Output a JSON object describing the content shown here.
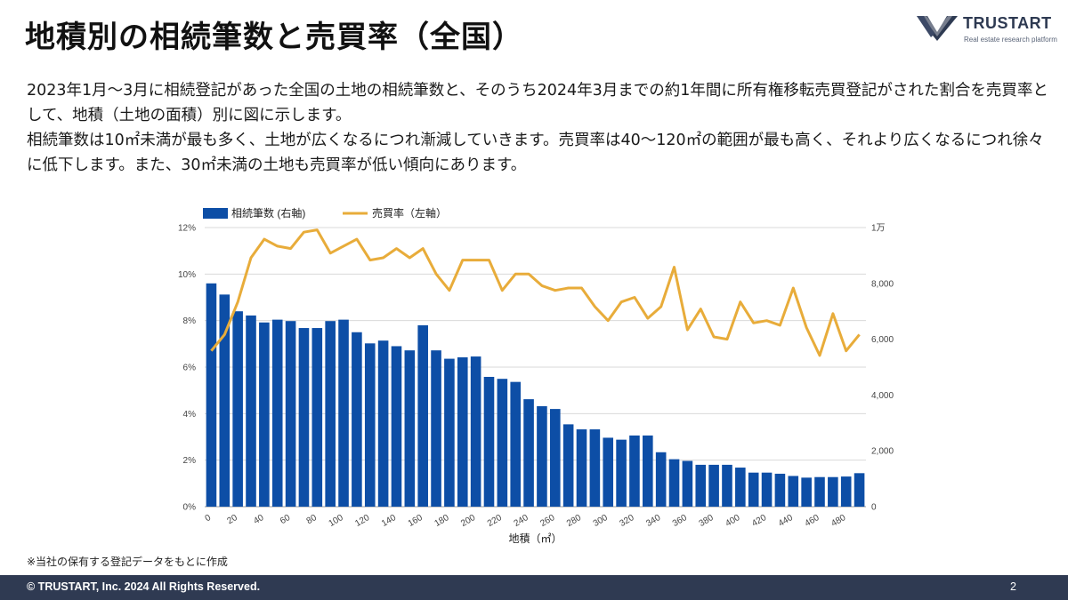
{
  "header": {
    "title": "地積別の相続筆数と売買率（全国）"
  },
  "logo": {
    "name": "TRUSTART",
    "tagline": "Real estate research platform"
  },
  "description": {
    "line1": "2023年1月～3月に相続登記があった全国の土地の相続筆数と、そのうち2024年3月までの約1年間に所有権移転売買登記がされた割合を売買率として、地積（土地の面積）別に図に示します。",
    "line2": "相続筆数は10㎡未満が最も多く、土地が広くなるにつれ漸減していきます。売買率は40～120㎡の範囲が最も高く、それより広くなるにつれ徐々に低下します。また、30㎡未満の土地も売買率が低い傾向にあります。"
  },
  "chart_data": {
    "type": "bar+line",
    "legend": [
      {
        "name": "相続筆数 (右軸)",
        "kind": "bar",
        "color": "#0d4ea6"
      },
      {
        "name": "売買率（左軸）",
        "kind": "line",
        "color": "#e8ac3a"
      }
    ],
    "legend_position": "top-left",
    "xlabel": "地積（㎡）",
    "x": [
      0,
      10,
      20,
      30,
      40,
      50,
      60,
      70,
      80,
      90,
      100,
      110,
      120,
      130,
      140,
      150,
      160,
      170,
      180,
      190,
      200,
      210,
      220,
      230,
      240,
      250,
      260,
      270,
      280,
      290,
      300,
      310,
      320,
      330,
      340,
      350,
      360,
      370,
      380,
      390,
      400,
      410,
      420,
      430,
      440,
      450,
      460,
      470,
      480,
      490
    ],
    "x_tick_labels": [
      "0",
      "20",
      "40",
      "60",
      "80",
      "100",
      "120",
      "140",
      "160",
      "180",
      "200",
      "220",
      "240",
      "260",
      "280",
      "300",
      "320",
      "340",
      "360",
      "380",
      "400",
      "420",
      "440",
      "460",
      "480"
    ],
    "series": [
      {
        "name": "相続筆数 (右軸)",
        "axis": "right",
        "values": [
          8000,
          7600,
          7000,
          6850,
          6600,
          6700,
          6650,
          6400,
          6400,
          6650,
          6700,
          6250,
          5850,
          5950,
          5750,
          5600,
          6500,
          5600,
          5300,
          5350,
          5380,
          4650,
          4580,
          4470,
          3850,
          3600,
          3500,
          2950,
          2770,
          2770,
          2470,
          2400,
          2550,
          2550,
          1950,
          1700,
          1640,
          1500,
          1500,
          1500,
          1400,
          1220,
          1220,
          1180,
          1100,
          1040,
          1060,
          1060,
          1080,
          1200
        ]
      },
      {
        "name": "売買率（左軸）",
        "axis": "left",
        "values": [
          6.7,
          7.4,
          8.8,
          10.7,
          11.5,
          11.2,
          11.1,
          11.8,
          11.9,
          10.9,
          11.2,
          11.5,
          10.6,
          10.7,
          11.1,
          10.7,
          11.1,
          10.0,
          9.3,
          10.6,
          10.6,
          10.6,
          9.3,
          10.0,
          10.0,
          9.5,
          9.3,
          9.4,
          9.4,
          8.6,
          8.0,
          8.8,
          9.0,
          8.1,
          8.6,
          10.3,
          7.6,
          8.5,
          7.3,
          7.2,
          8.8,
          7.9,
          8.0,
          7.8,
          9.4,
          7.7,
          6.5,
          8.3,
          6.7,
          7.4
        ]
      }
    ],
    "y_left": {
      "min": 0,
      "max": 12,
      "ticks": [
        "0%",
        "2%",
        "4%",
        "6%",
        "8%",
        "10%",
        "12%"
      ]
    },
    "y_right": {
      "min": 0,
      "max": 10000,
      "ticks": [
        "0",
        "2,000",
        "4,000",
        "6,000",
        "8,000",
        "1万"
      ]
    },
    "grid": true
  },
  "note": "※当社の保有する登記データをもとに作成",
  "footer": {
    "copyright": "© TRUSTART, Inc. 2024 All Rights Reserved.",
    "page": "2"
  }
}
